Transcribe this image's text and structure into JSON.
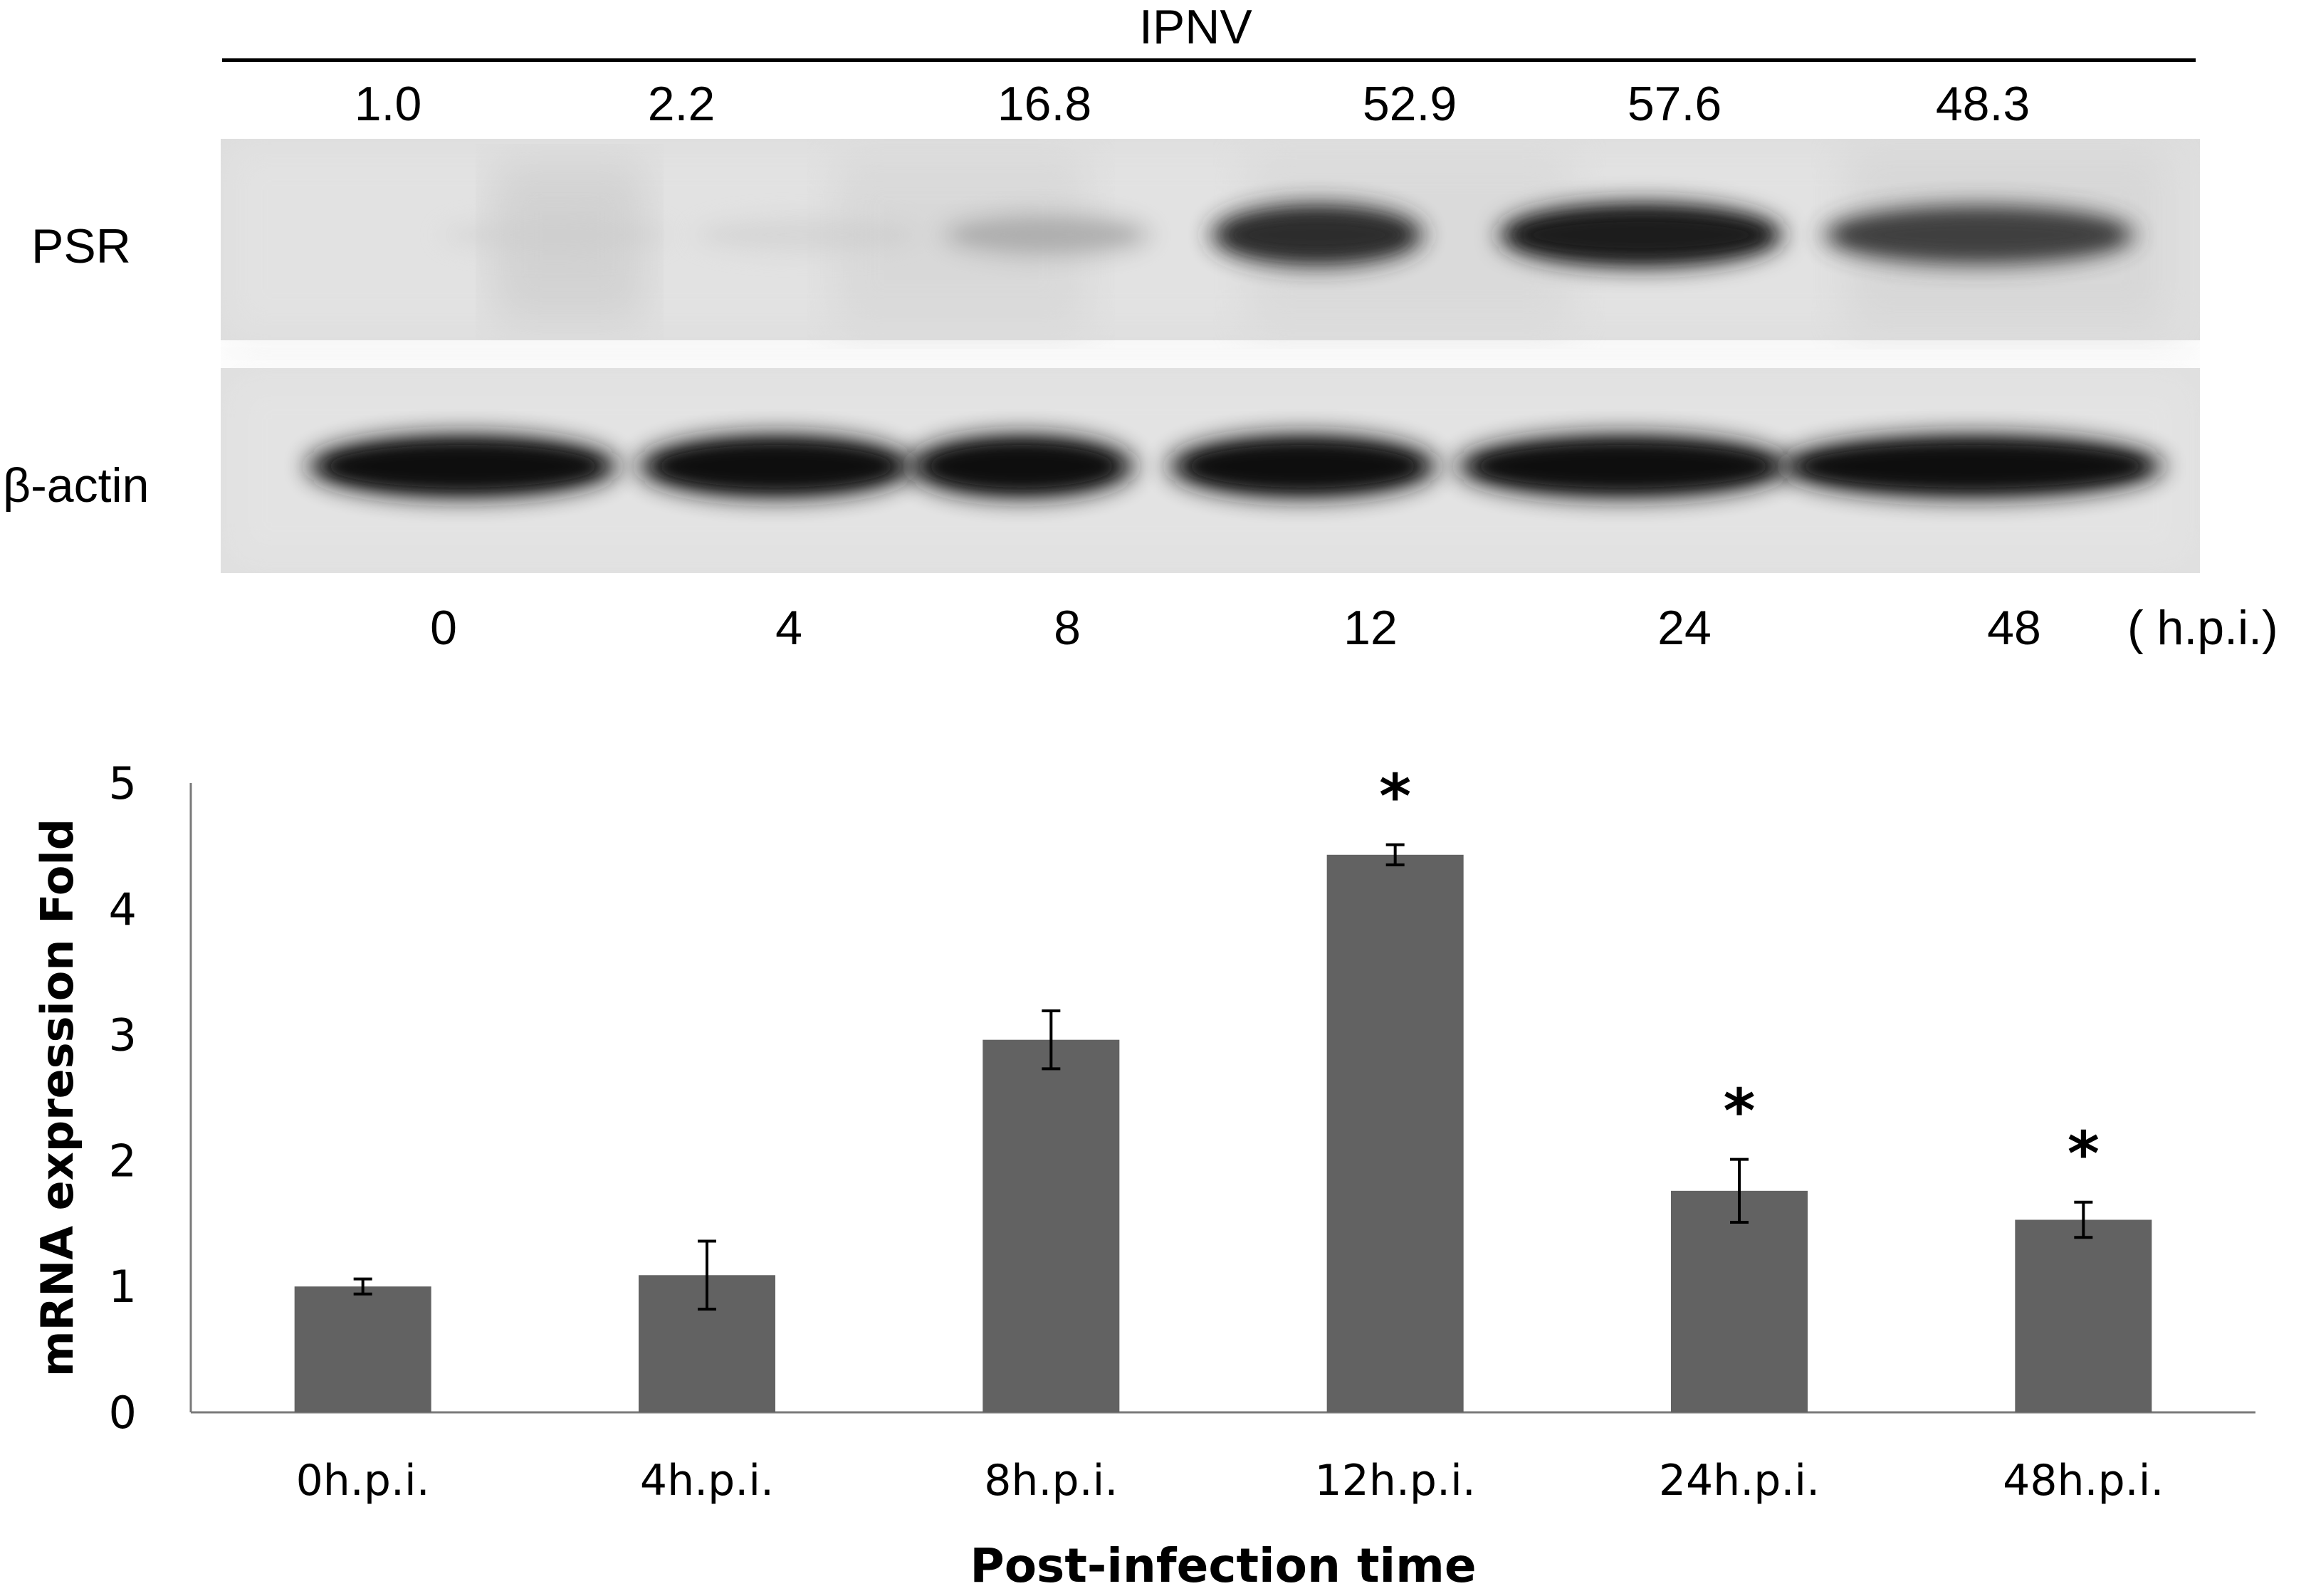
{
  "blot": {
    "treatment_label": "IPNV",
    "band_values": [
      "1.0",
      "2.2",
      "16.8",
      "52.9",
      "57.6",
      "48.3"
    ],
    "band_fractions": [
      0.02,
      0.04,
      0.29,
      0.92,
      1.0,
      0.84
    ],
    "rows": [
      "PSR",
      "β-actin"
    ],
    "time_points": [
      "0",
      "4",
      "8",
      "12",
      "24",
      "48"
    ],
    "time_unit": "( h.p.i.)"
  },
  "chart_data": {
    "type": "bar",
    "categories": [
      "0h.p.i.",
      "4h.p.i.",
      "8h.p.i.",
      "12h.p.i.",
      "24h.p.i.",
      "48h.p.i."
    ],
    "values": [
      1.0,
      1.09,
      2.96,
      4.43,
      1.76,
      1.53
    ],
    "error": [
      0.06,
      0.27,
      0.23,
      0.08,
      0.25,
      0.14
    ],
    "significant": [
      false,
      false,
      false,
      true,
      true,
      true
    ],
    "significance_marker": "*",
    "title": "",
    "xlabel": "Post-infection time",
    "ylabel": "mRNA expression Fold",
    "ylim": [
      0,
      5
    ],
    "yticks": [
      "0",
      "1",
      "2",
      "3",
      "4",
      "5"
    ],
    "grid": false,
    "bar_color": "#626262"
  }
}
